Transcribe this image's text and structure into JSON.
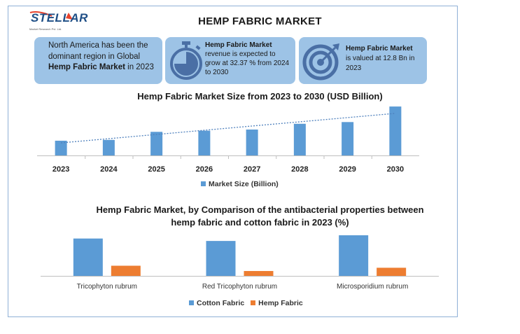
{
  "logo": {
    "name": "STELLAR",
    "subtitle": "Market Research Pvt. Ltd."
  },
  "title": "HEMP FABRIC MARKET",
  "cards": [
    {
      "icon": "globe-region-icon",
      "pre": "North America has been the dominant region in Global ",
      "bold": "Hemp Fabric Market",
      "post": " in 2023"
    },
    {
      "icon": "stopwatch-icon",
      "bold": "Hemp Fabric Market",
      "post": " revenue is expected to grow at 32.37 % from 2024 to 2030"
    },
    {
      "icon": "target-icon",
      "bold": "Hemp Fabric Market",
      "post": " is valued at 12.8 Bn in 2023"
    }
  ],
  "colors": {
    "blue": "#5b9bd5",
    "orange": "#ed7d31",
    "card": "#9dc3e6",
    "icon": "#4a6fa5"
  },
  "chart_data": [
    {
      "type": "bar",
      "title": "Hemp Fabric Market Size from 2023 to 2030 (USD Billion)",
      "categories": [
        "2023",
        "2024",
        "2025",
        "2026",
        "2027",
        "2028",
        "2029",
        "2030"
      ],
      "series": [
        {
          "name": "Market Size (Billion)",
          "values": [
            12.8,
            13.5,
            20.5,
            21.5,
            22.5,
            27.5,
            29.0,
            42.5
          ]
        }
      ],
      "trendline": true,
      "ylim": [
        0,
        45
      ],
      "legend": "bottom"
    },
    {
      "type": "bar",
      "title": "Hemp Fabric Market, by Comparison of the antibacterial properties between hemp fabric and cotton fabric in 2023 (%)",
      "categories": [
        "Tricophyton rubrum",
        "Red Tricophyton rubrum",
        "Microsporidium rubrum"
      ],
      "series": [
        {
          "name": "Cotton Fabric",
          "values": [
            92,
            86,
            100
          ]
        },
        {
          "name": "Hemp Fabric",
          "values": [
            25,
            12,
            20
          ]
        }
      ],
      "ylim": [
        0,
        100
      ],
      "legend": "bottom"
    }
  ]
}
